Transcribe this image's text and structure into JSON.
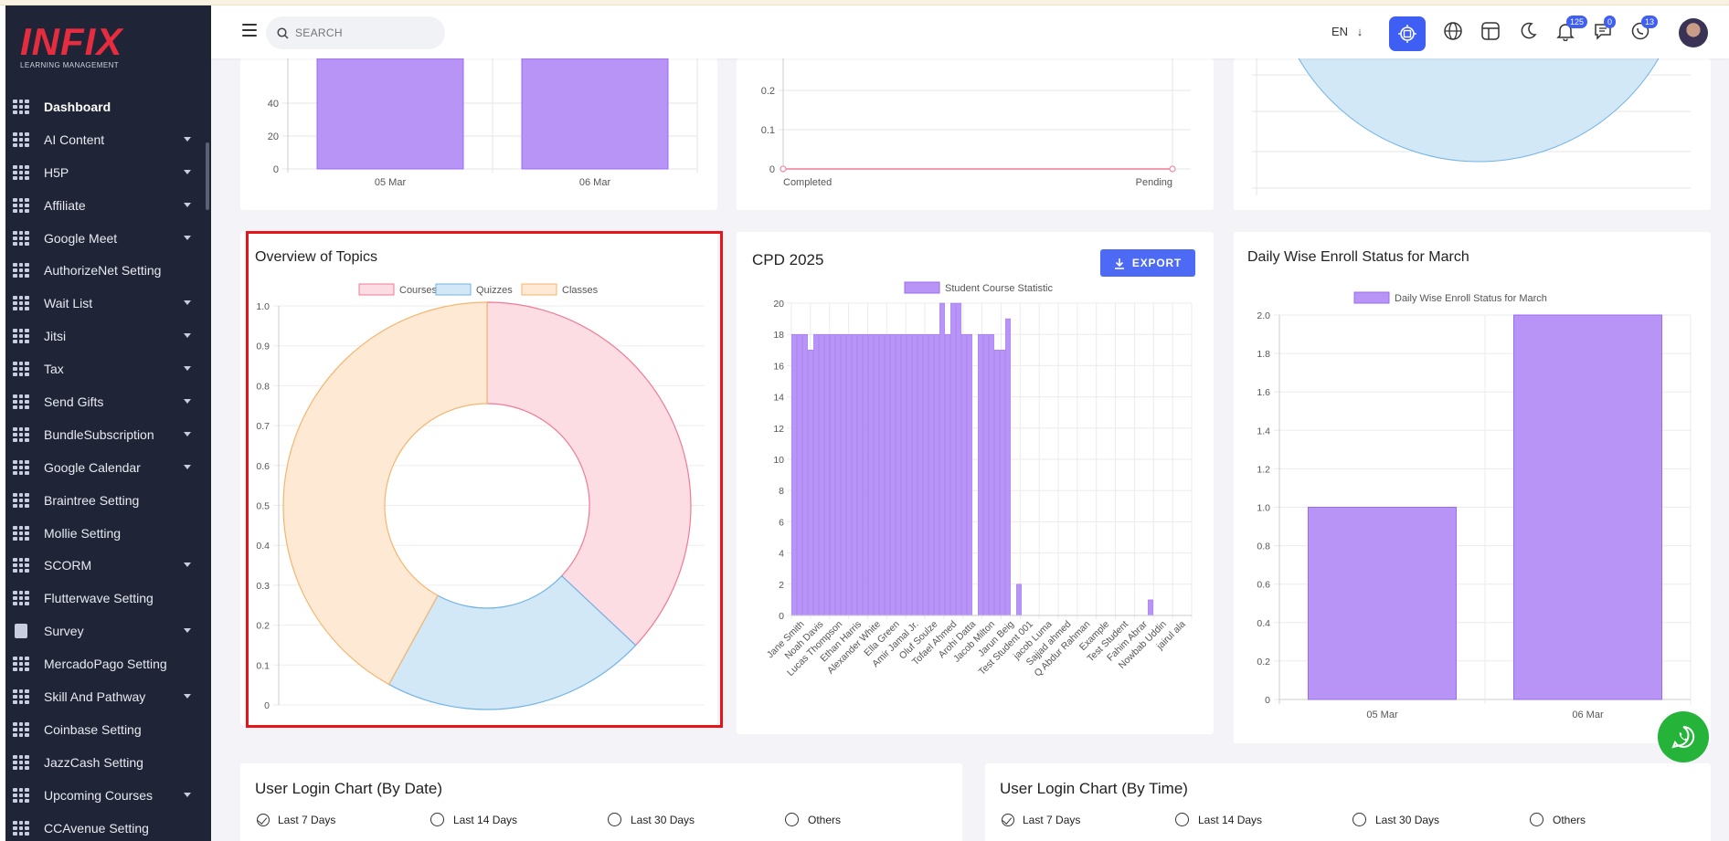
{
  "app": {
    "brand": "INFIX",
    "brand_sub": "LEARNING MANAGEMENT"
  },
  "header": {
    "search_placeholder": "SEARCH",
    "language": "EN",
    "notification_count": "125",
    "message_count": "0",
    "chat_count": "13"
  },
  "sidebar": {
    "items": [
      {
        "label": "Dashboard",
        "icon": "grid-icon",
        "expandable": false,
        "active": true
      },
      {
        "label": "AI Content",
        "icon": "grid-icon",
        "expandable": true
      },
      {
        "label": "H5P",
        "icon": "grid-icon",
        "expandable": true
      },
      {
        "label": "Affiliate",
        "icon": "grid-icon",
        "expandable": true
      },
      {
        "label": "Google Meet",
        "icon": "grid-icon",
        "expandable": true
      },
      {
        "label": "AuthorizeNet Setting",
        "icon": "grid-icon",
        "expandable": false
      },
      {
        "label": "Wait List",
        "icon": "grid-icon",
        "expandable": true
      },
      {
        "label": "Jitsi",
        "icon": "grid-icon",
        "expandable": true
      },
      {
        "label": "Tax",
        "icon": "grid-icon",
        "expandable": true
      },
      {
        "label": "Send Gifts",
        "icon": "grid-icon",
        "expandable": true
      },
      {
        "label": "BundleSubscription",
        "icon": "grid-icon",
        "expandable": true
      },
      {
        "label": "Google Calendar",
        "icon": "grid-icon",
        "expandable": true
      },
      {
        "label": "Braintree Setting",
        "icon": "grid-icon",
        "expandable": false
      },
      {
        "label": "Mollie Setting",
        "icon": "grid-icon",
        "expandable": false
      },
      {
        "label": "SCORM",
        "icon": "grid-icon",
        "expandable": true
      },
      {
        "label": "Flutterwave Setting",
        "icon": "grid-icon",
        "expandable": false
      },
      {
        "label": "Survey",
        "icon": "document-icon",
        "expandable": true
      },
      {
        "label": "MercadoPago Setting",
        "icon": "grid-icon",
        "expandable": false
      },
      {
        "label": "Skill And Pathway",
        "icon": "grid-icon",
        "expandable": true
      },
      {
        "label": "Coinbase Setting",
        "icon": "grid-icon",
        "expandable": false
      },
      {
        "label": "JazzCash Setting",
        "icon": "grid-icon",
        "expandable": false
      },
      {
        "label": "Upcoming Courses",
        "icon": "grid-icon",
        "expandable": true
      },
      {
        "label": "CCAvenue Setting",
        "icon": "grid-icon",
        "expandable": false
      }
    ]
  },
  "colors": {
    "accent": "#3f5ef4",
    "sidebar_bg": "#202437",
    "bar_purple": "#b794f6",
    "highlight": "#e8141c"
  },
  "chart_data": [
    {
      "id": "top-left-partial",
      "type": "bar",
      "categories": [
        "05 Mar",
        "06 Mar"
      ],
      "visible_y_ticks": [
        0,
        20,
        40
      ],
      "note_visible": "bars extend above visible area"
    },
    {
      "id": "top-middle-partial",
      "type": "line",
      "categories": [
        "Completed",
        "Pending"
      ],
      "values": [
        0,
        0
      ],
      "visible_y_ticks": [
        0,
        0.1,
        0.2
      ]
    },
    {
      "id": "top-right-partial",
      "type": "pie",
      "note_visible": "light blue doughnut segment"
    },
    {
      "id": "overview-of-topics",
      "type": "pie",
      "title": "Overview of Topics",
      "legend": [
        "Courses",
        "Quizzes",
        "Classes"
      ],
      "values": [
        37,
        21,
        42
      ],
      "colors": [
        "#fcdde4",
        "#d2e8f7",
        "#fde9d4"
      ],
      "border_colors": [
        "#f27a95",
        "#72b3e6",
        "#f5b56e"
      ],
      "y_ticks": [
        "0",
        "0.1",
        "0.2",
        "0.3",
        "0.4",
        "0.5",
        "0.6",
        "0.7",
        "0.8",
        "0.9",
        "1.0"
      ]
    },
    {
      "id": "cpd-2025",
      "type": "bar",
      "title": "CPD 2025",
      "export_label": "EXPORT",
      "legend": [
        "Student Course Statistic"
      ],
      "ylim": [
        0,
        20
      ],
      "y_ticks": [
        "0",
        "2",
        "4",
        "6",
        "8",
        "10",
        "12",
        "14",
        "16",
        "18",
        "20"
      ],
      "x_labels": [
        "Jane Smith",
        "Noah Davis",
        "Lucas Thompson",
        "Ethan Harris",
        "Alexander White",
        "Ella Green",
        "Amir Jamal Jr.",
        "Oluf Soulze",
        "Tofael Ahmed",
        "Arohi Datta",
        "Jacob Milton",
        "Jarun Beig",
        "Test Student 001",
        "jacob Luma",
        "Sajjad ahmed",
        "Q Abdur Rahman",
        "Example",
        "Test Student",
        "Fahim Abrar",
        "Nowbab Uddin",
        "jairul ala"
      ],
      "values": [
        18,
        18,
        18,
        17,
        18,
        18,
        18,
        18,
        18,
        18,
        18,
        18,
        18,
        18,
        18,
        18,
        18,
        18,
        18,
        18,
        18,
        18,
        18,
        18,
        18,
        18,
        18,
        20,
        18,
        20,
        20,
        18,
        18,
        0,
        18,
        18,
        18,
        17,
        17,
        19,
        0,
        2,
        0,
        0,
        0,
        0,
        0,
        0,
        0,
        0,
        0,
        0,
        0,
        0,
        0,
        0,
        0,
        0,
        0,
        0,
        0,
        0,
        0,
        0,
        0,
        1,
        0,
        0,
        0,
        0,
        0,
        0,
        0
      ]
    },
    {
      "id": "daily-enroll",
      "type": "bar",
      "title": "Daily Wise Enroll Status for March",
      "legend": [
        "Daily Wise Enroll Status for March"
      ],
      "categories": [
        "05 Mar",
        "06 Mar"
      ],
      "values": [
        1,
        2
      ],
      "ylim": [
        0,
        2
      ],
      "y_ticks": [
        "0",
        "0.2",
        "0.4",
        "0.6",
        "0.8",
        "1.0",
        "1.2",
        "1.4",
        "1.6",
        "1.8",
        "2.0"
      ]
    }
  ],
  "login_by_date": {
    "title": "User Login Chart (By Date)",
    "options": [
      "Last 7 Days",
      "Last 14 Days",
      "Last 30 Days",
      "Others"
    ]
  },
  "login_by_time": {
    "title": "User Login Chart (By Time)",
    "options": [
      "Last 7 Days",
      "Last 14 Days",
      "Last 30 Days",
      "Others"
    ]
  }
}
